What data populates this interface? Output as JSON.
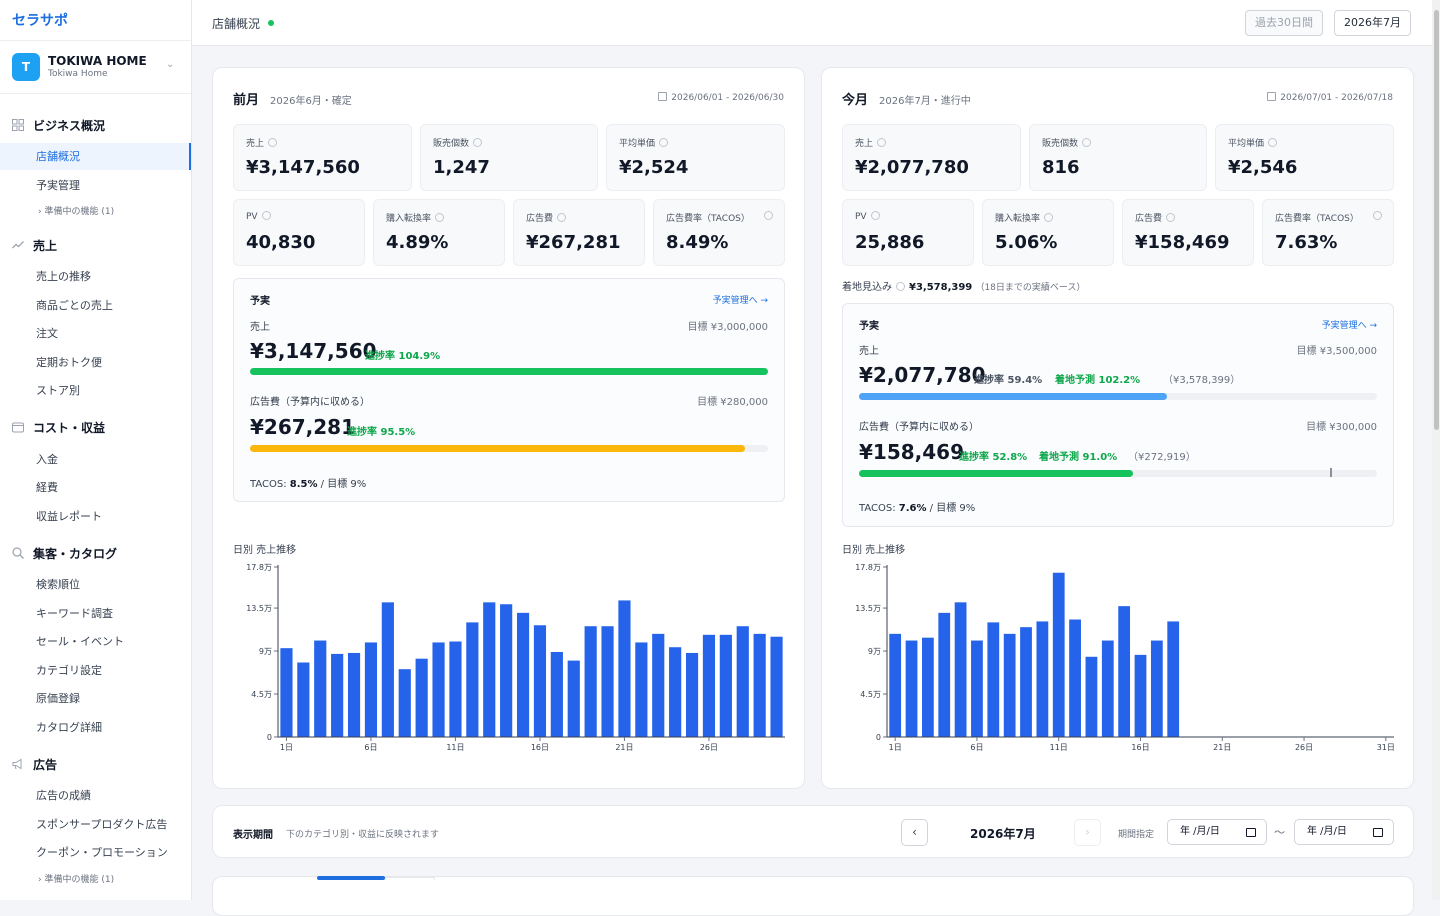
{
  "app": {
    "logo": "セラサポ"
  },
  "store": {
    "avatar": "T",
    "name": "TOKIWA HOME",
    "sub": "Tokiwa Home"
  },
  "sidebar": {
    "sections": [
      {
        "label": "ビジネス概況",
        "icon": "grid-icon"
      },
      {
        "label": "売上",
        "icon": "trend-icon"
      },
      {
        "label": "コスト・収益",
        "icon": "wallet-icon"
      },
      {
        "label": "集客・カタログ",
        "icon": "search-icon"
      },
      {
        "label": "広告",
        "icon": "megaphone-icon"
      }
    ],
    "items": [
      "店舗概況",
      "予実管理",
      "売上の推移",
      "商品ごとの売上",
      "注文",
      "定期おトク便",
      "ストア別",
      "入金",
      "経費",
      "収益レポート",
      "検索順位",
      "キーワード調査",
      "セール・イベント",
      "カテゴリ設定",
      "原価登録",
      "カタログ詳細",
      "広告の成績",
      "スポンサープロダクト広告",
      "クーポン・プロモーション"
    ],
    "soon": "準備中の機能 (1)"
  },
  "topbar": {
    "title": "店舗概況",
    "range_btn": "過去30日間",
    "month_btn": "2026年7月"
  },
  "prev": {
    "title": "前月",
    "sub": "2026年6月・確定",
    "dates": "2026/06/01 - 2026/06/30",
    "kpi_top": [
      {
        "label": "売上",
        "value": "¥3,147,560"
      },
      {
        "label": "販売個数",
        "value": "1,247"
      },
      {
        "label": "平均単価",
        "value": "¥2,524"
      }
    ],
    "kpi_bottom": [
      {
        "label": "PV",
        "value": "40,830"
      },
      {
        "label": "購入転換率",
        "value": "4.89%"
      },
      {
        "label": "広告費",
        "value": "¥267,281"
      },
      {
        "label": "広告費率（TACOS）",
        "value": "8.49%"
      }
    ],
    "budget": {
      "title": "予実",
      "link": "予実管理へ →",
      "sales_label": "売上",
      "sales_target": "目標 ¥3,000,000",
      "sales_value": "¥3,147,560",
      "sales_rate": "進捗率 104.9%",
      "sales_progress": 1.0,
      "ad_label": "広告費（予算内に収める）",
      "ad_target": "目標 ¥280,000",
      "ad_value": "¥267,281",
      "ad_rate": "進捗率 95.5%",
      "ad_progress": 0.955,
      "tacos_label": "TACOS: ",
      "tacos_value": "8.5%",
      "tacos_target": " / 目標 9%"
    },
    "chart_title": "日別 売上推移"
  },
  "cur": {
    "title": "今月",
    "sub": "2026年7月・進行中",
    "dates": "2026/07/01 - 2026/07/18",
    "kpi_top": [
      {
        "label": "売上",
        "value": "¥2,077,780"
      },
      {
        "label": "販売個数",
        "value": "816"
      },
      {
        "label": "平均単価",
        "value": "¥2,546"
      }
    ],
    "kpi_bottom": [
      {
        "label": "PV",
        "value": "25,886"
      },
      {
        "label": "購入転換率",
        "value": "5.06%"
      },
      {
        "label": "広告費",
        "value": "¥158,469"
      },
      {
        "label": "広告費率（TACOS）",
        "value": "7.63%"
      }
    ],
    "landing": {
      "label": "着地見込み",
      "value": "¥3,578,399",
      "note": "（18日までの実績ベース）"
    },
    "budget": {
      "title": "予実",
      "link": "予実管理へ →",
      "sales_label": "売上",
      "sales_target": "目標 ¥3,500,000",
      "sales_value": "¥2,077,780",
      "sales_rate": "進捗率 59.4%",
      "sales_forecast": "着地予測 102.2%",
      "sales_forecast_val": "（¥3,578,399）",
      "sales_progress": 0.594,
      "ad_label": "広告費（予算内に収める）",
      "ad_target": "目標 ¥300,000",
      "ad_value": "¥158,469",
      "ad_rate": "進捗率 52.8%",
      "ad_forecast": "着地予測 91.0%",
      "ad_forecast_val": "（¥272,919）",
      "ad_progress": 0.528,
      "ad_marker": 0.91,
      "tacos_label": "TACOS: ",
      "tacos_value": "7.6%",
      "tacos_target": " / 目標 9%"
    },
    "chart_title": "日別 売上推移"
  },
  "period": {
    "label": "表示期間",
    "note": "下のカテゴリ別・収益に反映されます",
    "month": "2026年7月",
    "spec_label": "期間指定",
    "date_placeholder": "年 /月/日"
  },
  "colors": {
    "accent": "#1d6fe0",
    "bar": "#2563eb",
    "green": "#16c25e",
    "amber": "#fbb70a",
    "light_blue": "#4fa3f7"
  },
  "chart_data": [
    {
      "type": "bar",
      "title": "日別 売上推移",
      "x": [
        1,
        2,
        3,
        4,
        5,
        6,
        7,
        8,
        9,
        10,
        11,
        12,
        13,
        14,
        15,
        16,
        17,
        18,
        19,
        20,
        21,
        22,
        23,
        24,
        25,
        26,
        27,
        28,
        29,
        30
      ],
      "x_ticks": [
        "1日",
        "6日",
        "11日",
        "16日",
        "21日",
        "26日"
      ],
      "values": [
        93000,
        78000,
        101000,
        87000,
        88000,
        99000,
        141000,
        71000,
        82000,
        99000,
        100000,
        120000,
        141000,
        139000,
        130000,
        117000,
        89000,
        80000,
        116000,
        116000,
        143000,
        99000,
        108000,
        94000,
        88000,
        107000,
        107000,
        116000,
        108000,
        105000
      ],
      "y_ticks": [
        "0",
        "4.5万",
        "9万",
        "13.5万",
        "17.8万"
      ],
      "ylim": [
        0,
        178000
      ],
      "ylabel": "",
      "xlabel": ""
    },
    {
      "type": "bar",
      "title": "日別 売上推移",
      "x": [
        1,
        2,
        3,
        4,
        5,
        6,
        7,
        8,
        9,
        10,
        11,
        12,
        13,
        14,
        15,
        16,
        17,
        18
      ],
      "x_ticks": [
        "1日",
        "6日",
        "11日",
        "16日",
        "21日",
        "26日",
        "31日"
      ],
      "values": [
        108000,
        101000,
        104000,
        130000,
        141000,
        101000,
        120000,
        108000,
        115000,
        121000,
        172000,
        123000,
        84000,
        101000,
        137000,
        86000,
        101000,
        121000
      ],
      "x_range": [
        1,
        31
      ],
      "y_ticks": [
        "0",
        "4.5万",
        "9万",
        "13.5万",
        "17.8万"
      ],
      "ylim": [
        0,
        178000
      ],
      "ylabel": "",
      "xlabel": ""
    }
  ]
}
